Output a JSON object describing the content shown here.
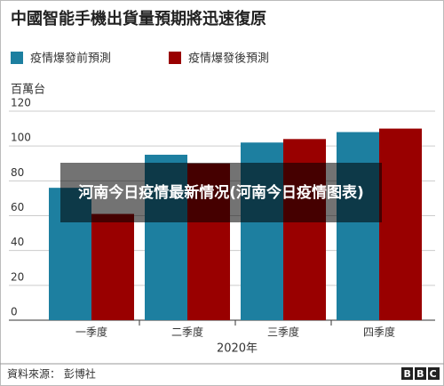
{
  "chart_data": {
    "type": "bar",
    "title": "中國智能手機出貨量預期將迅速復原",
    "y_unit": "百萬台",
    "x_label": "2020年",
    "categories": [
      "一季度",
      "二季度",
      "三季度",
      "四季度"
    ],
    "series": [
      {
        "name": "疫情爆發前預測",
        "color": "#1d7fa0",
        "values": [
          76,
          95,
          102,
          108
        ]
      },
      {
        "name": "疫情爆發後預測",
        "color": "#990000",
        "values": [
          61,
          90,
          104,
          110
        ]
      }
    ],
    "ylim": [
      0,
      120
    ],
    "yticks": [
      0,
      20,
      40,
      60,
      80,
      100,
      120
    ],
    "grid": true,
    "source": "資料來源： 彭博社",
    "logo": "BBC",
    "overlay_title": "河南今日疫情最新情况(河南今日疫情图表)"
  }
}
